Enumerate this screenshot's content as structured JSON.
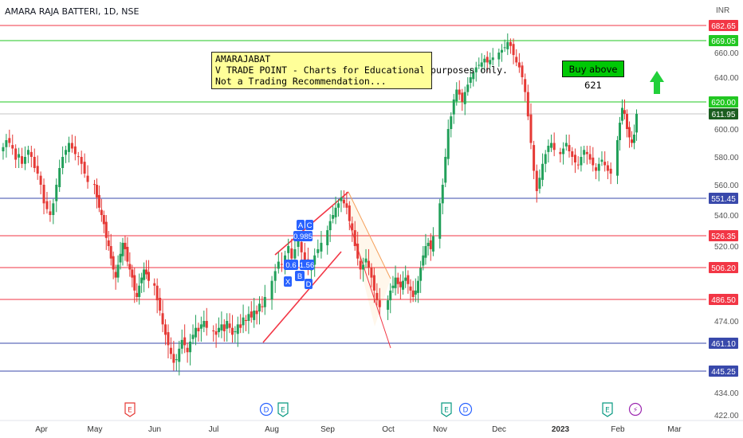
{
  "header": {
    "title": "AMARA RAJA BATTERI, 1D, NSE"
  },
  "note": {
    "lines": [
      "AMARAJABAT",
      "V TRADE POINT - Charts for Educational purposes only.",
      "Not a Trading Recommendation..."
    ]
  },
  "buy_label": "Buy above 621",
  "colors": {
    "up": "#26a69a",
    "up_candle": "#22a05a",
    "down": "#e53935",
    "green_line": "#4caf50",
    "red_line": "#ef5350",
    "blue_line": "#3f51b5",
    "pattern": "#2962ff"
  },
  "chart_data": {
    "type": "candlestick",
    "title": "AMARA RAJA BATTERI, 1D, NSE",
    "currency_label": "INR",
    "ylim": [
      416,
      690
    ],
    "y_ticks": [
      422,
      434,
      474,
      520,
      540,
      560,
      580,
      600,
      640,
      660
    ],
    "y_tick_labels": [
      "422.00",
      "434.00",
      "474.00",
      "520.00",
      "540.00",
      "560.00",
      "580.00",
      "600.00",
      "640.00",
      "660.00"
    ],
    "x_ticks": [
      "Apr",
      "May",
      "Jun",
      "Jul",
      "Aug",
      "Sep",
      "Oct",
      "Nov",
      "Dec",
      "2023",
      "Feb",
      "Mar"
    ],
    "last_price": 611.95,
    "levels": [
      {
        "value": 682.65,
        "label": "682.65",
        "color": "red"
      },
      {
        "value": 669.05,
        "label": "669.05",
        "color": "green"
      },
      {
        "value": 620.0,
        "label": "620.00",
        "color": "green"
      },
      {
        "value": 611.95,
        "label": "611.95",
        "color": "gray"
      },
      {
        "value": 551.45,
        "label": "551.45",
        "color": "blue"
      },
      {
        "value": 526.35,
        "label": "526.35",
        "color": "red"
      },
      {
        "value": 506.2,
        "label": "506.20",
        "color": "red"
      },
      {
        "value": 486.5,
        "label": "486.50",
        "color": "red"
      },
      {
        "value": 461.1,
        "label": "461.10",
        "color": "blue"
      },
      {
        "value": 445.25,
        "label": "445.25",
        "color": "blue"
      }
    ],
    "series": [
      {
        "month": "Apr",
        "closes": [
          587,
          592,
          590,
          586,
          578,
          582,
          575,
          580,
          585,
          580,
          572,
          568,
          560,
          548,
          544,
          540,
          548,
          560,
          572,
          580,
          585,
          590,
          586,
          582,
          580,
          575,
          568,
          562
        ]
      },
      {
        "month": "May",
        "closes": [
          560,
          552,
          545,
          540,
          534,
          525,
          520,
          512,
          505,
          500,
          508,
          515,
          522,
          518,
          510,
          505,
          500,
          492,
          488,
          495,
          500,
          505,
          502,
          498
        ]
      },
      {
        "month": "Jun",
        "closes": [
          495,
          486,
          480,
          472,
          466,
          460,
          455,
          450,
          452,
          458,
          463,
          460,
          456,
          462,
          466,
          470,
          468,
          472,
          474,
          470
        ]
      },
      {
        "month": "Jul",
        "closes": [
          468,
          466,
          470,
          472,
          468,
          474,
          470,
          466,
          468,
          472,
          470,
          476,
          474,
          478,
          476,
          480,
          478,
          484,
          482,
          488
        ]
      },
      {
        "month": "Aug",
        "closes": [
          498,
          504,
          510,
          508,
          514,
          520,
          512,
          518,
          524,
          516,
          510,
          506,
          508,
          514,
          518,
          522
        ]
      },
      {
        "month": "Sep",
        "closes": [
          530,
          536,
          540,
          545,
          548,
          552,
          548,
          545,
          536,
          530,
          520,
          512,
          505,
          508,
          512,
          506,
          500,
          492,
          486,
          482
        ]
      },
      {
        "month": "Oct",
        "closes": [
          486,
          492,
          495,
          500,
          496,
          494,
          498,
          500,
          496,
          492,
          488,
          492,
          498,
          506,
          514,
          520,
          522,
          518,
          526
        ]
      },
      {
        "month": "Nov",
        "closes": [
          548,
          560,
          580,
          600,
          610,
          622,
          630,
          626,
          620,
          628,
          634,
          640,
          644,
          648,
          650,
          652,
          655,
          652,
          654,
          656
        ]
      },
      {
        "month": "Dec",
        "closes": [
          660,
          662,
          664,
          668,
          665,
          658,
          652,
          648,
          640,
          628,
          610,
          590,
          570,
          556,
          565,
          575,
          582,
          588,
          590,
          585
        ]
      },
      {
        "month": "Jan",
        "closes": [
          582,
          586,
          590,
          584,
          580,
          576,
          574,
          580,
          585,
          582,
          578,
          574,
          570,
          575,
          578,
          574,
          570,
          568
        ]
      },
      {
        "month": "Feb",
        "closes": [
          592,
          605,
          616,
          612,
          600,
          594,
          590,
          596,
          612
        ]
      }
    ],
    "annotations": {
      "pattern_labels": [
        "A",
        "C",
        "0.985",
        "X",
        "B",
        "D",
        "0.6",
        "1.56"
      ],
      "event_markers": [
        {
          "month": "May",
          "label": "E",
          "color": "red"
        },
        {
          "month": "Aug",
          "label": "D",
          "color": "blue"
        },
        {
          "month": "Aug",
          "label": "E",
          "color": "green"
        },
        {
          "month": "Nov",
          "label": "E",
          "color": "green"
        },
        {
          "month": "Nov",
          "label": "D",
          "color": "blue"
        },
        {
          "month": "Feb",
          "label": "E",
          "color": "green"
        },
        {
          "month": "Feb",
          "label": "⚡",
          "color": "purple"
        }
      ]
    }
  }
}
